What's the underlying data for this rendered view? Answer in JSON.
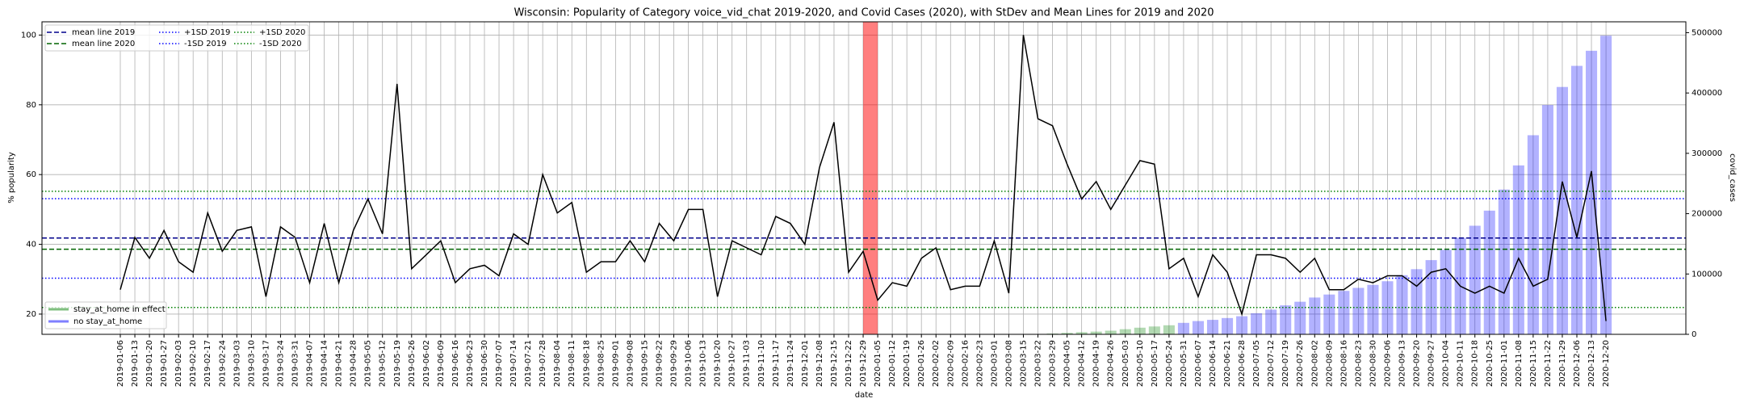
{
  "chart_data": {
    "type": "line",
    "title": "Wisconsin: Popularity of Category voice_vid_chat 2019-2020, and Covid Cases (2020), with StDev and Mean Lines for 2019 and 2020",
    "xlabel": "date",
    "ylabel": "% popularity",
    "y2label": "covid_cases",
    "categories": [
      "2019-01-06",
      "2019-01-13",
      "2019-01-20",
      "2019-01-27",
      "2019-02-03",
      "2019-02-10",
      "2019-02-17",
      "2019-02-24",
      "2019-03-03",
      "2019-03-10",
      "2019-03-17",
      "2019-03-24",
      "2019-03-31",
      "2019-04-07",
      "2019-04-14",
      "2019-04-21",
      "2019-04-28",
      "2019-05-05",
      "2019-05-12",
      "2019-05-19",
      "2019-05-26",
      "2019-06-02",
      "2019-06-09",
      "2019-06-16",
      "2019-06-23",
      "2019-06-30",
      "2019-07-07",
      "2019-07-14",
      "2019-07-21",
      "2019-07-28",
      "2019-08-04",
      "2019-08-11",
      "2019-08-18",
      "2019-08-25",
      "2019-09-01",
      "2019-09-08",
      "2019-09-15",
      "2019-09-22",
      "2019-09-29",
      "2019-10-06",
      "2019-10-13",
      "2019-10-20",
      "2019-10-27",
      "2019-11-03",
      "2019-11-10",
      "2019-11-17",
      "2019-11-24",
      "2019-12-01",
      "2019-12-08",
      "2019-12-15",
      "2019-12-22",
      "2019-12-29",
      "2020-01-05",
      "2020-01-12",
      "2020-01-19",
      "2020-01-26",
      "2020-02-02",
      "2020-02-09",
      "2020-02-16",
      "2020-02-23",
      "2020-03-01",
      "2020-03-08",
      "2020-03-15",
      "2020-03-22",
      "2020-03-29",
      "2020-04-05",
      "2020-04-12",
      "2020-04-19",
      "2020-04-26",
      "2020-05-03",
      "2020-05-10",
      "2020-05-17",
      "2020-05-24",
      "2020-05-31",
      "2020-06-07",
      "2020-06-14",
      "2020-06-21",
      "2020-06-28",
      "2020-07-05",
      "2020-07-12",
      "2020-07-19",
      "2020-07-26",
      "2020-08-02",
      "2020-08-09",
      "2020-08-16",
      "2020-08-23",
      "2020-08-30",
      "2020-09-06",
      "2020-09-13",
      "2020-09-20",
      "2020-09-27",
      "2020-10-04",
      "2020-10-11",
      "2020-10-18",
      "2020-10-25",
      "2020-11-01",
      "2020-11-08",
      "2020-11-15",
      "2020-11-22",
      "2020-11-29",
      "2020-12-06",
      "2020-12-13",
      "2020-12-20"
    ],
    "values": [
      27,
      42,
      36,
      44,
      35,
      32,
      49,
      38,
      44,
      45,
      25,
      45,
      42,
      29,
      46,
      29,
      44,
      53,
      43,
      86,
      33,
      37,
      41,
      29,
      33,
      34,
      31,
      43,
      40,
      60,
      49,
      52,
      32,
      35,
      35,
      41,
      35,
      46,
      41,
      50,
      50,
      25,
      41,
      39,
      37,
      48,
      46,
      40,
      62,
      75,
      32,
      38,
      24,
      29,
      28,
      36,
      39,
      27,
      28,
      28,
      41,
      26,
      100,
      76,
      74,
      63,
      53,
      58,
      50,
      57,
      64,
      63,
      33,
      36,
      25,
      37,
      32,
      20,
      37,
      37,
      36,
      32,
      36,
      27,
      27,
      30,
      29,
      31,
      31,
      28,
      32,
      33,
      28,
      26,
      28,
      26,
      36,
      28,
      30,
      58,
      42,
      61,
      18
    ],
    "line_color": "#000000",
    "series": [
      {
        "name": "stay_at_home in effect",
        "color": "#008000",
        "axis": "y2",
        "values": [
          null,
          null,
          null,
          null,
          null,
          null,
          null,
          null,
          null,
          null,
          null,
          null,
          null,
          null,
          null,
          null,
          null,
          null,
          null,
          null,
          null,
          null,
          null,
          null,
          null,
          null,
          null,
          null,
          null,
          null,
          null,
          null,
          null,
          null,
          null,
          null,
          null,
          null,
          null,
          null,
          null,
          null,
          null,
          null,
          null,
          null,
          null,
          null,
          null,
          null,
          null,
          null,
          null,
          null,
          null,
          null,
          null,
          null,
          null,
          null,
          null,
          null,
          null,
          400,
          1300,
          2500,
          3500,
          4500,
          6000,
          8500,
          11000,
          13000,
          15000,
          null,
          null,
          null,
          null,
          null,
          null,
          null,
          null,
          null,
          null,
          null,
          null,
          null,
          null,
          null,
          null,
          null,
          null,
          null,
          null,
          null,
          null,
          null,
          null,
          null,
          null,
          null,
          null,
          null,
          null
        ]
      },
      {
        "name": "no stay_at_home",
        "color": "#0000ff",
        "axis": "y2",
        "values": [
          null,
          null,
          null,
          null,
          null,
          null,
          null,
          null,
          null,
          null,
          null,
          null,
          null,
          null,
          null,
          null,
          null,
          null,
          null,
          null,
          null,
          null,
          null,
          null,
          null,
          null,
          null,
          null,
          null,
          null,
          null,
          null,
          null,
          null,
          null,
          null,
          null,
          null,
          null,
          null,
          null,
          null,
          null,
          null,
          null,
          null,
          null,
          null,
          null,
          null,
          null,
          null,
          null,
          null,
          null,
          null,
          null,
          null,
          null,
          null,
          null,
          null,
          null,
          null,
          null,
          null,
          null,
          null,
          null,
          null,
          null,
          null,
          null,
          19000,
          22000,
          24000,
          27000,
          30000,
          35000,
          41000,
          48000,
          54000,
          61000,
          66000,
          72000,
          77000,
          82000,
          88000,
          98000,
          108000,
          123000,
          140000,
          160000,
          180000,
          205000,
          240000,
          280000,
          330000,
          380000,
          410000,
          445000,
          470000,
          495000
        ]
      }
    ],
    "hlines": [
      {
        "name": "mean line 2019",
        "value": 41.8,
        "color": "#00008b",
        "style": "dashed"
      },
      {
        "name": "mean line 2020",
        "value": 38.6,
        "color": "#006400",
        "style": "dashed"
      },
      {
        "name": "+1SD 2019",
        "value": 53.1,
        "color": "#0000ff",
        "style": "dotted"
      },
      {
        "name": "-1SD 2019",
        "value": 30.3,
        "color": "#0000ff",
        "style": "dotted"
      },
      {
        "name": "+1SD 2020",
        "value": 55.2,
        "color": "#008000",
        "style": "dotted"
      },
      {
        "name": "-1SD 2020",
        "value": 21.9,
        "color": "#008000",
        "style": "dotted"
      }
    ],
    "highlight": {
      "from": "2019-12-29",
      "to": "2020-01-05",
      "color": "#ff0000"
    },
    "ylim": [
      14.2,
      103.8
    ],
    "yticks": [
      20,
      40,
      60,
      80,
      100
    ],
    "y2lim": [
      0,
      518000
    ],
    "y2ticks": [
      0,
      100000,
      200000,
      300000,
      400000,
      500000
    ],
    "grid": true,
    "legend": "upper left",
    "legend2": "lower left"
  }
}
